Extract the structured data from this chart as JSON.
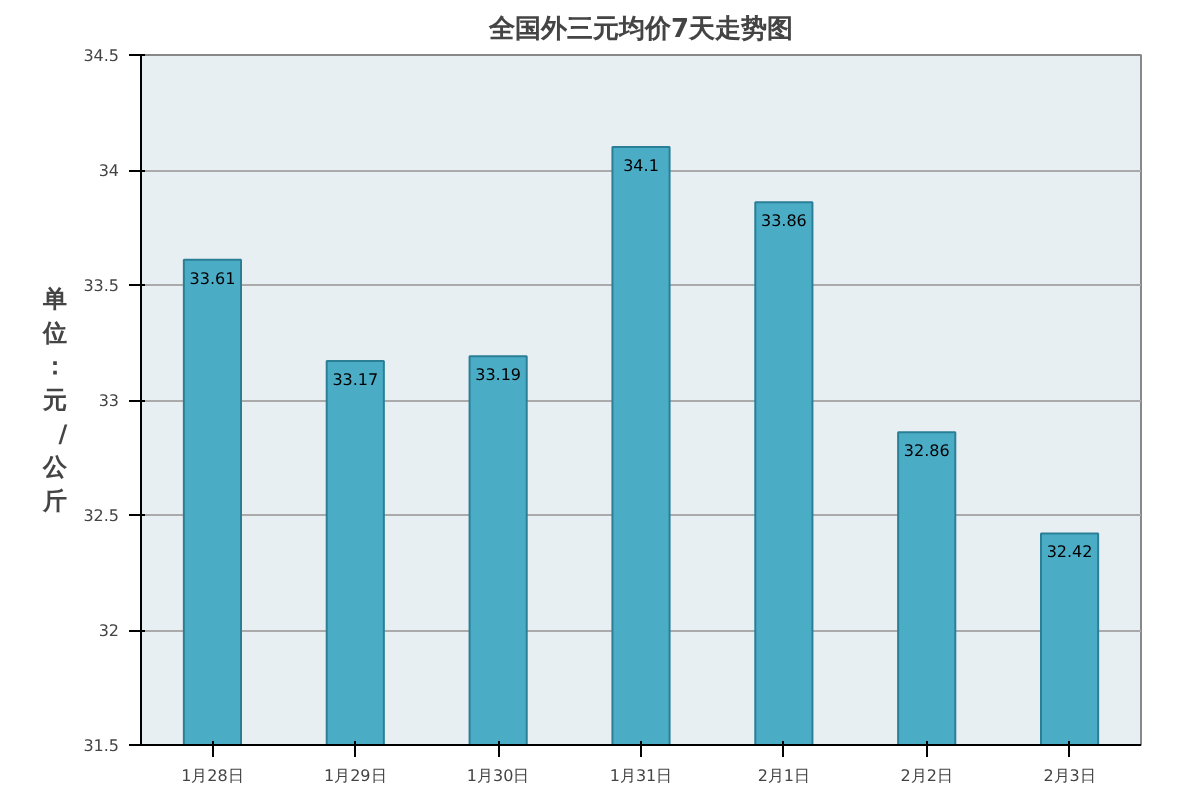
{
  "chart_data": {
    "type": "bar",
    "title": "全国外三元均价7天走势图",
    "ylabel": "单位：元/公斤",
    "categories": [
      "1月28日",
      "1月29日",
      "1月30日",
      "1月31日",
      "2月1日",
      "2月2日",
      "2月3日"
    ],
    "values": [
      33.61,
      33.17,
      33.19,
      34.1,
      33.86,
      32.86,
      32.42
    ],
    "color": "#4bacc6",
    "ylim": [
      31.5,
      34.5
    ],
    "yticks": [
      31.5,
      32,
      32.5,
      33,
      33.5,
      34,
      34.5
    ],
    "grid": "y",
    "data_labels": true
  }
}
